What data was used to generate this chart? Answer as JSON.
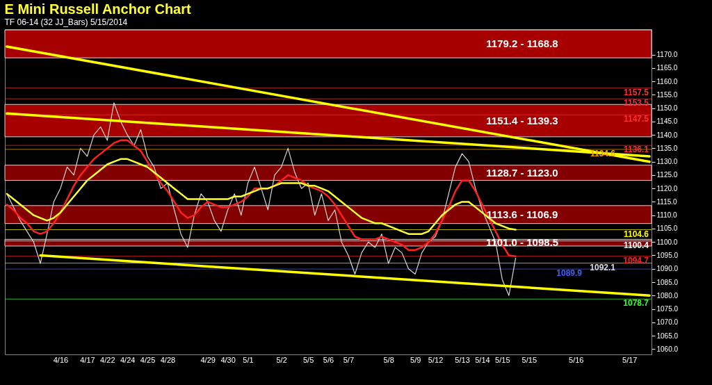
{
  "chart_data": {
    "type": "line",
    "title": "E Mini Russell Anchor Chart",
    "subtitle": "TF 06-14 (32 JJ_Bars) 5/15/2014",
    "categories": [
      null,
      null,
      null,
      null,
      null,
      null,
      null,
      null,
      "4/16",
      null,
      null,
      null,
      "4/17",
      null,
      null,
      "4/22",
      null,
      null,
      "4/24",
      null,
      null,
      "4/25",
      null,
      null,
      "4/28",
      null,
      null,
      null,
      null,
      null,
      "4/29",
      null,
      null,
      "4/30",
      null,
      null,
      "5/1",
      null,
      null,
      null,
      null,
      "5/2",
      null,
      null,
      null,
      "5/5",
      null,
      null,
      "5/6",
      null,
      null,
      "5/7",
      null,
      null,
      null,
      null,
      null,
      "5/8",
      null,
      null,
      null,
      "5/9",
      null,
      null,
      "5/12",
      null,
      null,
      null,
      "5/13",
      null,
      null,
      "5/14",
      null,
      null,
      "5/15",
      null,
      null,
      null,
      "5/15",
      null,
      null,
      null,
      null,
      null,
      null,
      "5/16",
      null,
      null,
      null,
      null,
      null,
      null,
      null,
      "5/17",
      null,
      null,
      null
    ],
    "ylim": [
      1058,
      1179.5
    ],
    "yticks": [
      {
        "value": 1060,
        "label": "1060.0"
      },
      {
        "value": 1065,
        "label": "1065.0"
      },
      {
        "value": 1070,
        "label": "1070.0"
      },
      {
        "value": 1075,
        "label": "1075.0"
      },
      {
        "value": 1080,
        "label": "1080.0"
      },
      {
        "value": 1085,
        "label": "1085.0"
      },
      {
        "value": 1090,
        "label": "1090.0"
      },
      {
        "value": 1095,
        "label": "1095.0"
      },
      {
        "value": 1100,
        "label": "1100.0"
      },
      {
        "value": 1105,
        "label": "1105.0"
      },
      {
        "value": 1110,
        "label": "1110.0"
      },
      {
        "value": 1115,
        "label": "1115.0"
      },
      {
        "value": 1120,
        "label": "1120.0"
      },
      {
        "value": 1125,
        "label": "1125.0"
      },
      {
        "value": 1130,
        "label": "1130.0"
      },
      {
        "value": 1135,
        "label": "1135.0"
      },
      {
        "value": 1140,
        "label": "1140.0"
      },
      {
        "value": 1145,
        "label": "1145.0"
      },
      {
        "value": 1150,
        "label": "1150.0"
      },
      {
        "value": 1155,
        "label": "1155.0"
      },
      {
        "value": 1160,
        "label": "1160.0"
      },
      {
        "value": 1165,
        "label": "1165.0"
      },
      {
        "value": 1170,
        "label": "1170.0"
      }
    ],
    "bands": [
      {
        "axis": "y",
        "from": 1168.8,
        "to": 1179.2,
        "label": "1179.2 - 1168.8",
        "color": "#b00000"
      },
      {
        "axis": "y",
        "from": 1139.3,
        "to": 1151.4,
        "label": "1151.4 - 1139.3",
        "color": "#b00000"
      },
      {
        "axis": "y",
        "from": 1123.0,
        "to": 1128.7,
        "label": "1128.7 - 1123.0",
        "color": "#8b0000"
      },
      {
        "axis": "y",
        "from": 1106.9,
        "to": 1113.6,
        "label": "1113.6 - 1106.9",
        "color": "#8b0000"
      },
      {
        "axis": "y",
        "from": 1098.5,
        "to": 1101.0,
        "label": "1101.0 - 1098.5",
        "color": "#8b0000"
      }
    ],
    "ref_lines": [
      {
        "axis": "y",
        "value": 1157.5,
        "label": "1157.5",
        "color": "#ff3030"
      },
      {
        "axis": "y",
        "value": 1153.5,
        "label": "1153.5",
        "color": "#ff3030"
      },
      {
        "axis": "y",
        "value": 1147.5,
        "label": "1147.5",
        "color": "#ff3030"
      },
      {
        "axis": "y",
        "value": 1136.1,
        "label": "1136.1",
        "color": "#ff3030"
      },
      {
        "axis": "y",
        "value": 1134.6,
        "label": "1134.6",
        "color": "#ffaa00"
      },
      {
        "axis": "y",
        "value": 1104.6,
        "label": "1104.6",
        "color": "#ffff00"
      },
      {
        "axis": "y",
        "value": 1100.4,
        "label": "1100.4",
        "color": "#ffffff"
      },
      {
        "axis": "y",
        "value": 1094.7,
        "label": "1094.7",
        "color": "#ff2020"
      },
      {
        "axis": "y",
        "value": 1092.1,
        "label": "1092.1",
        "color": "#dddddd"
      },
      {
        "axis": "y",
        "value": 1089.9,
        "label": "1089.9",
        "color": "#4060ff"
      },
      {
        "axis": "y",
        "value": 1078.7,
        "label": "1078.7",
        "color": "#33ff33"
      }
    ],
    "series": [
      {
        "type": "line",
        "color": "#d8d8d8",
        "values": [
          1118,
          1113,
          1108,
          1104,
          1100,
          1092,
          1103,
          1115,
          1120,
          1128,
          1125,
          1135,
          1132,
          1140,
          1143,
          1138,
          1152,
          1145,
          1140,
          1136,
          1142,
          1132,
          1128,
          1120,
          1122,
          1112,
          1103,
          1098,
          1110,
          1118,
          1115,
          1108,
          1104,
          1112,
          1118,
          1110,
          1122,
          1128,
          1120,
          1112,
          1125,
          1128,
          1135,
          1126,
          1120,
          1122,
          1110,
          1118,
          1108,
          1112,
          1100,
          1095,
          1088,
          1096,
          1100,
          1098,
          1103,
          1092,
          1098,
          1096,
          1090,
          1088,
          1096,
          1100,
          1102,
          1108,
          1118,
          1128,
          1133,
          1130,
          1120,
          1112,
          1106,
          1100,
          1086,
          1080,
          1094,
          null,
          null,
          null,
          null,
          null,
          null,
          null,
          null,
          null,
          null,
          null,
          null,
          null,
          null,
          null,
          null,
          null,
          null,
          null,
          null
        ]
      },
      {
        "type": "line",
        "color": "#ff2020",
        "values": [
          1114,
          1112,
          1109,
          1107,
          1104,
          1103,
          1104,
          1107,
          1111,
          1116,
          1121,
          1125,
          1128,
          1131,
          1133,
          1135,
          1137,
          1138,
          1138,
          1136,
          1134,
          1130,
          1126,
          1122,
          1119,
          1115,
          1111,
          1109,
          1110,
          1113,
          1115,
          1114,
          1113,
          1113,
          1114,
          1115,
          1117,
          1120,
          1120,
          1120,
          1121,
          1123,
          1125,
          1124,
          1123,
          1121,
          1120,
          1119,
          1117,
          1114,
          1110,
          1106,
          1102,
          1101,
          1101,
          1101,
          1102,
          1101,
          1100,
          1099,
          1097,
          1097,
          1098,
          1100,
          1103,
          1108,
          1113,
          1119,
          1123,
          1123,
          1119,
          1114,
          1109,
          1104,
          1099,
          1095,
          1094.7,
          null,
          null,
          null,
          null,
          null,
          null,
          null,
          null,
          null,
          null,
          null,
          null,
          null,
          null,
          null,
          null,
          null,
          null,
          null,
          null
        ]
      },
      {
        "type": "line",
        "color": "#ffff33",
        "values": [
          1118,
          1116,
          1114,
          1112,
          1110,
          1109,
          1108,
          1109,
          1111,
          1114,
          1117,
          1120,
          1123,
          1125,
          1127,
          1129,
          1130,
          1131,
          1131,
          1130,
          1129,
          1128,
          1126,
          1124,
          1122,
          1120,
          1118,
          1116,
          1116,
          1116,
          1116,
          1116,
          1116,
          1116,
          1117,
          1117,
          1118,
          1119,
          1120,
          1120,
          1121,
          1122,
          1122,
          1122,
          1122,
          1121,
          1121,
          1120,
          1119,
          1117,
          1115,
          1113,
          1111,
          1109,
          1108,
          1107,
          1107,
          1106,
          1105,
          1104,
          1103,
          1103,
          1103,
          1104,
          1107,
          1110,
          1112,
          1114,
          1115,
          1115,
          1113,
          1111,
          1109,
          1107,
          1106,
          1105,
          1104.6,
          null,
          null,
          null,
          null,
          null,
          null,
          null,
          null,
          null,
          null,
          null,
          null,
          null,
          null,
          null,
          null,
          null,
          null,
          null,
          null
        ]
      },
      {
        "type": "line",
        "color": "#ffff00",
        "values": [
          1173,
          null,
          null,
          null,
          null,
          null,
          null,
          null,
          null,
          null,
          null,
          null,
          null,
          null,
          null,
          null,
          null,
          null,
          null,
          null,
          null,
          null,
          null,
          null,
          null,
          null,
          null,
          null,
          null,
          null,
          null,
          null,
          null,
          null,
          null,
          null,
          null,
          null,
          null,
          null,
          null,
          null,
          null,
          null,
          null,
          null,
          null,
          null,
          null,
          null,
          null,
          null,
          null,
          null,
          null,
          null,
          null,
          null,
          null,
          null,
          null,
          null,
          null,
          null,
          null,
          null,
          null,
          null,
          null,
          null,
          null,
          null,
          null,
          null,
          null,
          null,
          null,
          null,
          null,
          null,
          null,
          null,
          null,
          null,
          null,
          null,
          null,
          null,
          null,
          null,
          null,
          null,
          null,
          null,
          null,
          null,
          1130
        ]
      },
      {
        "type": "line",
        "color": "#ffff00",
        "values": [
          1148,
          null,
          null,
          null,
          null,
          null,
          null,
          null,
          null,
          null,
          null,
          null,
          null,
          null,
          null,
          null,
          null,
          null,
          null,
          null,
          null,
          null,
          null,
          null,
          null,
          null,
          null,
          null,
          null,
          null,
          null,
          null,
          null,
          null,
          null,
          null,
          null,
          null,
          null,
          null,
          null,
          null,
          null,
          null,
          null,
          null,
          null,
          null,
          null,
          null,
          null,
          null,
          null,
          null,
          null,
          null,
          null,
          null,
          null,
          null,
          null,
          null,
          null,
          null,
          null,
          null,
          null,
          null,
          null,
          null,
          null,
          null,
          null,
          null,
          null,
          null,
          null,
          null,
          null,
          null,
          null,
          null,
          null,
          null,
          null,
          null,
          null,
          null,
          null,
          null,
          null,
          null,
          null,
          null,
          null,
          null,
          1132
        ]
      },
      {
        "type": "line",
        "color": "#ffff00",
        "values": [
          null,
          null,
          null,
          null,
          null,
          1095,
          null,
          null,
          null,
          null,
          null,
          null,
          null,
          null,
          null,
          null,
          null,
          null,
          null,
          null,
          null,
          null,
          null,
          null,
          null,
          null,
          null,
          null,
          null,
          null,
          null,
          null,
          null,
          null,
          null,
          null,
          null,
          null,
          null,
          null,
          null,
          null,
          null,
          null,
          null,
          null,
          null,
          null,
          null,
          null,
          null,
          null,
          null,
          null,
          null,
          null,
          null,
          null,
          null,
          null,
          null,
          null,
          null,
          null,
          null,
          null,
          null,
          null,
          null,
          null,
          null,
          null,
          null,
          null,
          null,
          null,
          null,
          null,
          null,
          null,
          null,
          null,
          null,
          null,
          null,
          null,
          null,
          null,
          null,
          null,
          null,
          null,
          null,
          null,
          null,
          null,
          1080
        ]
      }
    ]
  }
}
